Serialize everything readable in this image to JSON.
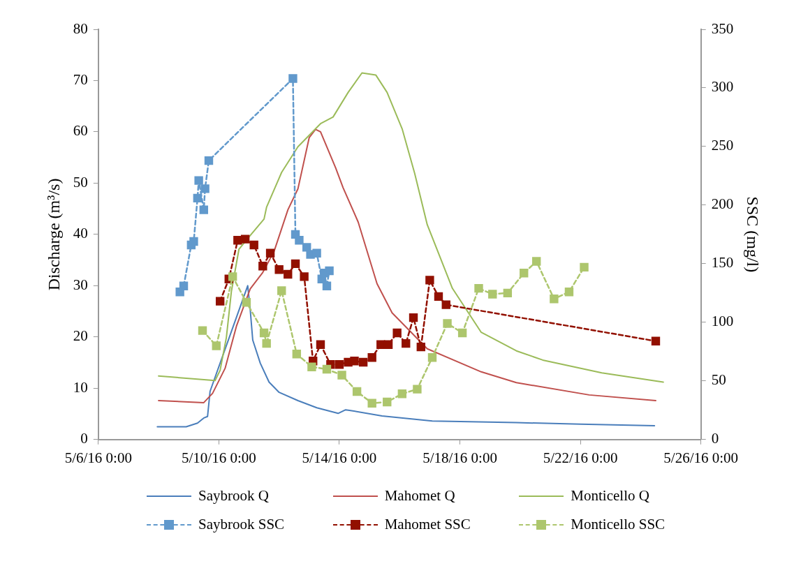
{
  "chart_data": {
    "type": "line",
    "ylabel": "Discharge (m³/s)",
    "y2label": "SSC (mg/l)",
    "xlim": [
      "--05-06T00:00",
      "--05-26T00:00"
    ],
    "xticks": [
      {
        "value": "--05-06T00:00",
        "label": "5/6/16 0:00"
      },
      {
        "value": "--05-10T00:00",
        "label": "5/10/16 0:00"
      },
      {
        "value": "--05-14T00:00",
        "label": "5/14/16 0:00"
      },
      {
        "value": "--05-18T00:00",
        "label": "5/18/16 0:00"
      },
      {
        "value": "--05-22T00:00",
        "label": "5/22/16 0:00"
      },
      {
        "value": "--05-26T00:00",
        "label": "5/26/16 0:00"
      }
    ],
    "ylim": [
      0,
      80
    ],
    "yticks": [
      0,
      10,
      20,
      30,
      40,
      50,
      60,
      70,
      80
    ],
    "y2lim": [
      0,
      350
    ],
    "y2ticks": [
      0,
      50,
      100,
      150,
      200,
      250,
      300,
      350
    ],
    "grid": false,
    "legend": "bottom",
    "series": [
      {
        "name": "Saybrook Q",
        "color": "#4a7ebb",
        "marker": "none",
        "line_style": "solid",
        "x": [
          "--05-07T23:00",
          "--05-08T22:00",
          "--05-09T07:00",
          "--05-09T12:00",
          "--05-09T15:00",
          "--05-09T17:00",
          "--05-10T23:00",
          "--05-11T01:00",
          "--05-11T03:00",
          "--05-11T09:00",
          "--05-11T16:00",
          "--05-12T00:00",
          "--05-12T15:00",
          "--05-13T06:00",
          "--05-13T23:00",
          "--05-14T05:00",
          "--05-14T08:00",
          "--05-15T10:00",
          "--05-17T02:00",
          "--05-19T21:00",
          "--05-22T00:00",
          "--05-24T11:00"
        ],
        "values": [
          2.5,
          2.5,
          3.2,
          4.2,
          4.5,
          9.4,
          30,
          25.3,
          19.4,
          14.9,
          11.2,
          9.2,
          7.6,
          6.2,
          5.1,
          5.8,
          5.7,
          4.6,
          3.6,
          3.3,
          3.0,
          2.7
        ]
      },
      {
        "name": "Mahomet Q",
        "color": "#c0504d",
        "marker": "none",
        "line_style": "solid",
        "x": [
          "--05-08T00:00",
          "--05-09T12:00",
          "--05-09T19:00",
          "--05-10T05:00",
          "--05-10T14:00",
          "--05-11T01:00",
          "--05-11T11:00",
          "--05-11T20:00",
          "--05-12T07:00",
          "--05-12T15:00",
          "--05-13T00:00",
          "--05-13T05:00",
          "--05-13T09:00",
          "--05-13T21:00",
          "--05-14T03:00",
          "--05-14T15:00",
          "--05-15T06:00",
          "--05-15T18:00",
          "--05-16T22:00",
          "--05-18T17:00",
          "--05-19T21:00",
          "--05-22T07:00",
          "--05-24T12:00"
        ],
        "values": [
          7.6,
          7.2,
          9.0,
          13.9,
          22.1,
          29.4,
          32.6,
          36.7,
          44.8,
          48.9,
          58.9,
          60.5,
          60.0,
          53,
          49.1,
          42.4,
          30.4,
          24.7,
          17.7,
          13.2,
          11.1,
          8.7,
          7.6
        ]
      },
      {
        "name": "Monticello Q",
        "color": "#9bbb59",
        "marker": "none",
        "line_style": "solid",
        "x": [
          "--05-08T00:00",
          "--05-09T21:00",
          "--05-10T01:00",
          "--05-10T06:00",
          "--05-10T10:00",
          "--05-10T16:00",
          "--05-11T01:00",
          "--05-11T12:00",
          "--05-11T14:00",
          "--05-12T02:00",
          "--05-12T15:00",
          "--05-13T09:00",
          "--05-13T19:00",
          "--05-14T07:00",
          "--05-14T18:00",
          "--05-15T05:00",
          "--05-15T14:00",
          "--05-16T02:00",
          "--05-16T12:00",
          "--05-16T22:00",
          "--05-17T18:00",
          "--05-18T17:00",
          "--05-19T21:00",
          "--05-20T18:00",
          "--05-22T17:00",
          "--05-24T18:00"
        ],
        "values": [
          12.4,
          11.5,
          13.5,
          19.9,
          28.9,
          37.1,
          39.8,
          43.0,
          45.3,
          52.1,
          57.1,
          61.6,
          62.9,
          67.7,
          71.5,
          71.1,
          67.7,
          60.6,
          51.9,
          41.9,
          29.5,
          20.9,
          17.3,
          15.5,
          13.0,
          11.2
        ]
      },
      {
        "name": "Saybrook SSC",
        "color": "#6199cc",
        "marker": "square",
        "line_style": "dashed",
        "axis": "y2",
        "x": [
          "--05-08T17:00",
          "--05-08T20:00",
          "--05-09T02:00",
          "--05-09T04:00",
          "--05-09T07:00",
          "--05-09T08:00",
          "--05-09T12:00",
          "--05-09T13:00",
          "--05-09T16:00",
          "--05-12T11:00",
          "--05-12T13:00",
          "--05-12T16:00",
          "--05-12T22:00",
          "--05-13T01:00",
          "--05-13T06:00",
          "--05-13T10:00",
          "--05-13T12:00",
          "--05-13T14:00",
          "--05-13T16:00"
        ],
        "values": [
          126,
          131,
          166,
          169,
          206,
          221,
          196,
          214,
          238,
          308,
          175,
          170,
          164,
          158,
          159,
          137,
          142,
          131,
          144
        ]
      },
      {
        "name": "Mahomet SSC",
        "color": "#921000",
        "marker": "square",
        "line_style": "dashed",
        "axis": "y2",
        "x": [
          "--05-10T01:00",
          "--05-10T08:00",
          "--05-10T15:00",
          "--05-10T21:00",
          "--05-11T04:00",
          "--05-11T11:00",
          "--05-11T17:00",
          "--05-12T00:00",
          "--05-12T07:00",
          "--05-12T13:00",
          "--05-12T20:00",
          "--05-13T03:00",
          "--05-13T09:00",
          "--05-13T17:00",
          "--05-14T00:00",
          "--05-14T07:00",
          "--05-14T12:00",
          "--05-14T19:00",
          "--05-15T02:00",
          "--05-15T09:00",
          "--05-15T15:00",
          "--05-15T22:00",
          "--05-16T05:00",
          "--05-16T11:00",
          "--05-16T17:00",
          "--05-17T00:00",
          "--05-17T07:00",
          "--05-17T13:00",
          "--05-24T12:00"
        ],
        "values": [
          118,
          137,
          170,
          171,
          166,
          148,
          159,
          145,
          141,
          150,
          139,
          67,
          81,
          64,
          64,
          66,
          67,
          66,
          70,
          81,
          81,
          91,
          82,
          104,
          79,
          136,
          122,
          115,
          84
        ]
      },
      {
        "name": "Monticello SSC",
        "color": "#adc66d",
        "marker": "square",
        "line_style": "dashed",
        "axis": "y2",
        "x": [
          "--05-09T11:00",
          "--05-09T22:00",
          "--05-10T11:00",
          "--05-10T22:00",
          "--05-11T12:00",
          "--05-11T14:00",
          "--05-12T02:00",
          "--05-12T14:00",
          "--05-13T02:00",
          "--05-13T14:00",
          "--05-14T02:00",
          "--05-14T14:00",
          "--05-15T02:00",
          "--05-15T14:00",
          "--05-16T02:00",
          "--05-16T14:00",
          "--05-17T02:00",
          "--05-17T14:00",
          "--05-18T02:00",
          "--05-18T15:00",
          "--05-19T02:00",
          "--05-19T14:00",
          "--05-20T03:00",
          "--05-20T13:00",
          "--05-21T03:00",
          "--05-21T15:00",
          "--05-22T03:00"
        ],
        "values": [
          93,
          80,
          139,
          117,
          91,
          82,
          127,
          73,
          62,
          60,
          55,
          41,
          31,
          32,
          39,
          43,
          70,
          99,
          91,
          129,
          124,
          125,
          142,
          152,
          120,
          126,
          147
        ]
      }
    ]
  }
}
